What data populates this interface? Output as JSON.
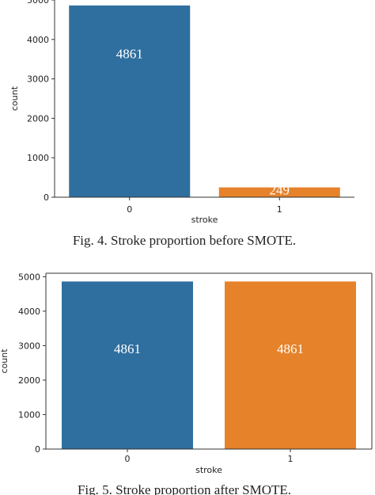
{
  "figures": [
    {
      "caption": "Fig. 4.   Stroke proportion before SMOTE.",
      "chart_data": {
        "type": "bar",
        "categories": [
          "0",
          "1"
        ],
        "values": [
          4861,
          249
        ],
        "data_labels": [
          "4861",
          "249"
        ],
        "xlabel": "stroke",
        "ylabel": "count",
        "ylim": [
          0,
          5000
        ],
        "yticks": [
          0,
          1000,
          2000,
          3000,
          4000,
          5000
        ],
        "colors": [
          "#2f6f9f",
          "#e6822a"
        ],
        "grid": false
      }
    },
    {
      "caption": "Fig. 5.   Stroke proportion after SMOTE.",
      "chart_data": {
        "type": "bar",
        "categories": [
          "0",
          "1"
        ],
        "values": [
          4861,
          4861
        ],
        "data_labels": [
          "4861",
          "4861"
        ],
        "xlabel": "stroke",
        "ylabel": "count",
        "ylim": [
          0,
          5100
        ],
        "yticks": [
          0,
          1000,
          2000,
          3000,
          4000,
          5000
        ],
        "colors": [
          "#2f6f9f",
          "#e6822a"
        ],
        "grid": false
      }
    }
  ]
}
